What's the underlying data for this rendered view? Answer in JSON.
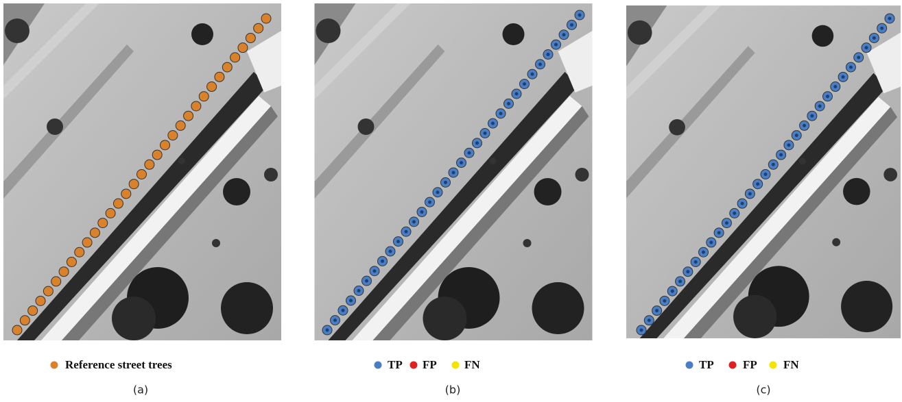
{
  "panels": [
    {
      "legend": [
        {
          "label": "Reference street trees",
          "color": "#d9822b"
        }
      ],
      "caption": "(a)"
    },
    {
      "legend": [
        {
          "label": "TP",
          "color": "#4a7ec4"
        },
        {
          "label": "FP",
          "color": "#e02020"
        },
        {
          "label": "FN",
          "color": "#f2e600"
        }
      ],
      "caption": "(b)"
    },
    {
      "legend": [
        {
          "label": "TP",
          "color": "#4a7ec4"
        },
        {
          "label": "FP",
          "color": "#e02020"
        },
        {
          "label": "FN",
          "color": "#f2e600"
        }
      ],
      "caption": "(c)"
    }
  ]
}
